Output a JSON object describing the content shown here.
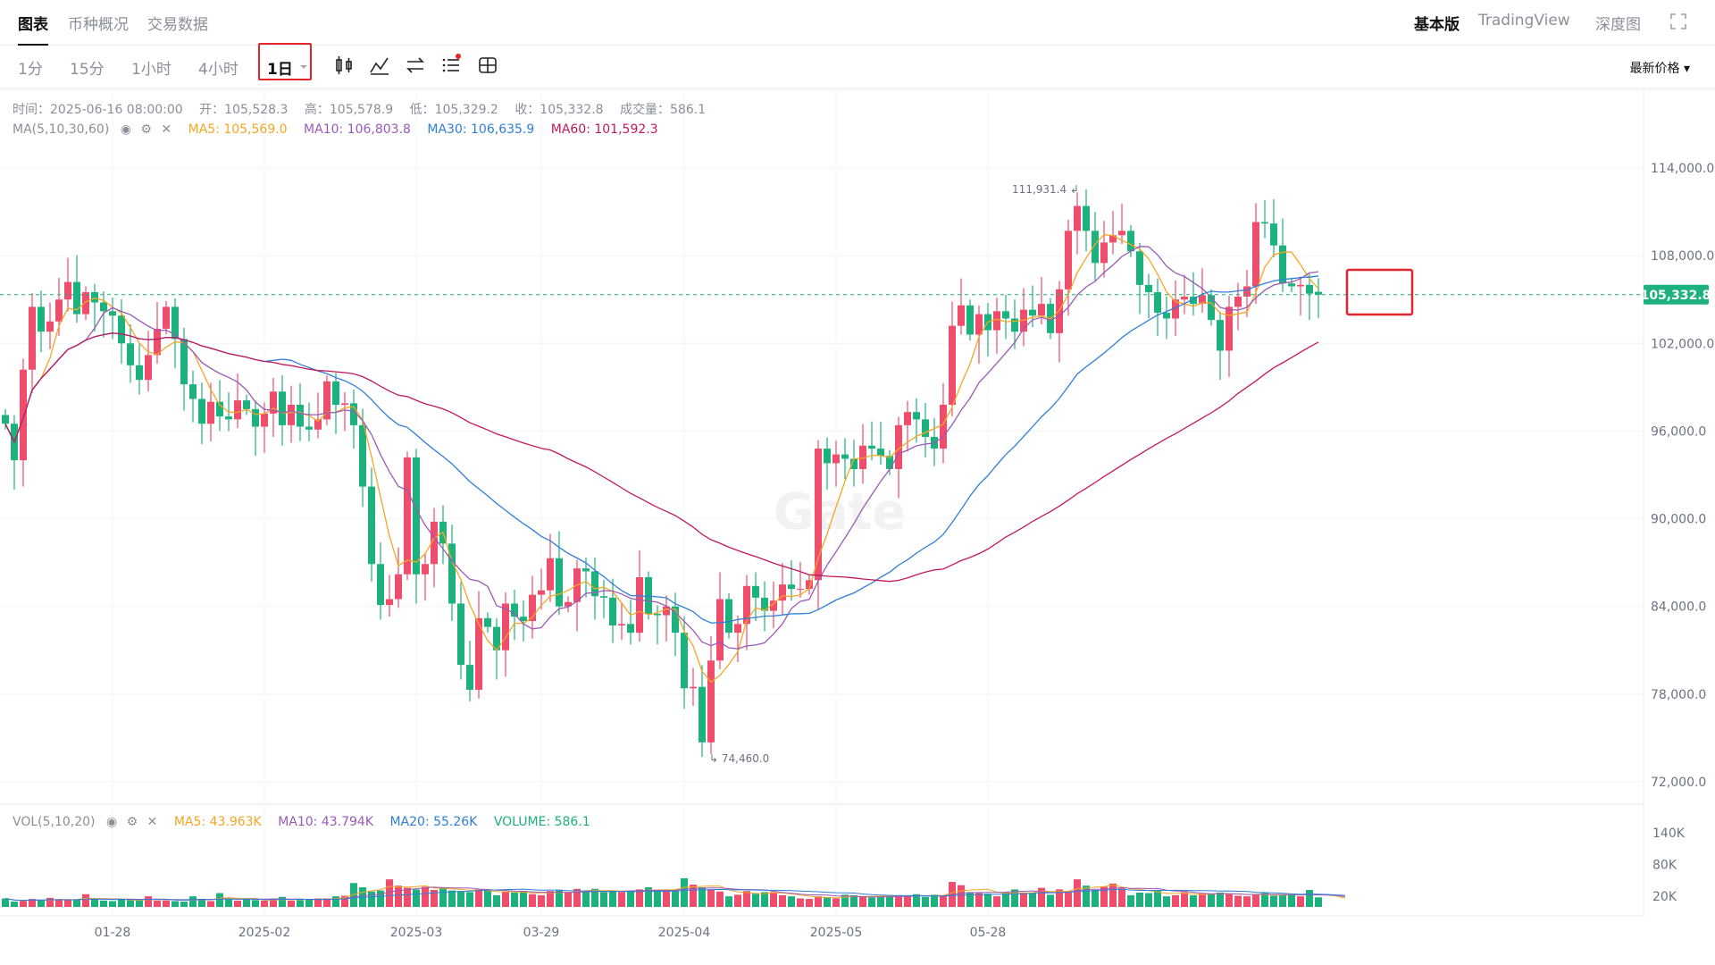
{
  "tabs": [
    "图表",
    "币种概况",
    "交易数据"
  ],
  "right_nav": [
    "基本版",
    "TradingView",
    "深度图"
  ],
  "intervals": [
    "1分",
    "15分",
    "1小时",
    "4小时",
    "1日"
  ],
  "price_type": "最新价格",
  "ohlc": {
    "time": "时间：2025-06-16 08:00:00",
    "open": "开：105,528.3",
    "high": "高：105,578.9",
    "low": "低：105,329.2",
    "close": "收：105,332.8",
    "vol": "成交量：586.1"
  },
  "ma_legend": {
    "title": "MA(5,10,30,60)",
    "ma5": "MA5: 105,569.0",
    "ma10": "MA10: 106,803.8",
    "ma30": "MA30: 106,635.9",
    "ma60": "MA60: 101,592.3"
  },
  "vol_legend": {
    "title": "VOL(5,10,20)",
    "ma5": "MA5: 43.963K",
    "ma10": "MA10: 43.794K",
    "ma20": "MA20: 55.26K",
    "volume": "VOLUME: 586.1"
  },
  "price_axis": [
    "114,000.0",
    "108,000.0",
    "102,000.0",
    "96,000.0",
    "90,000.0",
    "84,000.0",
    "78,000.0",
    "72,000.0"
  ],
  "vol_axis": [
    "140K",
    "80K",
    "20K"
  ],
  "date_axis": [
    "01-28",
    "2025-02",
    "2025-03",
    "03-29",
    "2025-04",
    "2025-05",
    "05-28"
  ],
  "current_price": "105,332.8",
  "high_marker": "111,931.4",
  "low_marker": "74,460.0",
  "colors": {
    "up": "#ef4d6c",
    "down": "#1db17e",
    "ma5": "#f5a623",
    "ma10": "#9b59b6",
    "ma30": "#2f7ed8",
    "ma60": "#c2185b"
  },
  "chart_data": {
    "type": "candlestick",
    "pair_interval": "1日",
    "ylim": [
      72000,
      114000
    ],
    "closes": [
      96500,
      94000,
      100200,
      104500,
      102800,
      103500,
      105000,
      106200,
      104000,
      105500,
      104800,
      104200,
      103900,
      102000,
      100500,
      99500,
      101200,
      103000,
      104500,
      102300,
      99200,
      98200,
      96500,
      98000,
      97000,
      96800,
      98100,
      97500,
      96300,
      97200,
      98700,
      96400,
      97800,
      96300,
      96100,
      96800,
      99400,
      97800,
      97900,
      96400,
      92200,
      86900,
      84100,
      84500,
      86200,
      94200,
      86200,
      86900,
      89800,
      88300,
      84200,
      80000,
      78300,
      83200,
      82600,
      81000,
      84200,
      83300,
      83000,
      84800,
      85100,
      87300,
      84000,
      84300,
      86600,
      86400,
      84700,
      84600,
      82700,
      82800,
      82200,
      86000,
      83500,
      83400,
      84000,
      82200,
      78400,
      78500,
      74700,
      80300,
      84500,
      82200,
      82800,
      85400,
      84600,
      83700,
      84400,
      85500,
      85200,
      85200,
      85800,
      94800,
      93800,
      94400,
      94100,
      93400,
      95000,
      94800,
      94300,
      93400,
      96400,
      97300,
      96800,
      95600,
      94800,
      97800,
      103200,
      104600,
      102600,
      104000,
      102900,
      104200,
      103700,
      102800,
      104300,
      103900,
      104700,
      102700,
      105700,
      109700,
      111400,
      109700,
      107500,
      108900,
      109400,
      109700,
      108300,
      106000,
      105500,
      104100,
      103700,
      105000,
      105200,
      104700,
      105300,
      103600,
      101500,
      104500,
      105200,
      105900,
      110300,
      110200,
      108700,
      106100,
      105900,
      106000,
      105400,
      105333
    ],
    "ma_series_note": "MA5/MA10/MA30/MA60 computed from closes",
    "volumes_k": [
      16,
      10,
      11,
      15,
      12,
      17,
      14,
      13,
      14,
      24,
      15,
      12,
      11,
      14,
      13,
      12,
      20,
      12,
      12,
      11,
      10,
      20,
      15,
      11,
      26,
      16,
      12,
      14,
      13,
      12,
      13,
      19,
      12,
      13,
      14,
      16,
      16,
      20,
      21,
      45,
      37,
      29,
      31,
      52,
      40,
      36,
      33,
      38,
      32,
      36,
      31,
      30,
      28,
      33,
      31,
      22,
      29,
      27,
      30,
      24,
      22,
      30,
      32,
      28,
      34,
      29,
      34,
      28,
      30,
      28,
      30,
      33,
      37,
      32,
      30,
      31,
      54,
      42,
      37,
      33,
      29,
      20,
      23,
      30,
      25,
      28,
      28,
      22,
      20,
      16,
      15,
      20,
      18,
      16,
      23,
      22,
      20,
      18,
      19,
      21,
      22,
      20,
      24,
      19,
      23,
      21,
      47,
      41,
      28,
      26,
      25,
      20,
      28,
      33,
      26,
      27,
      36,
      23,
      33,
      29,
      52,
      40,
      32,
      38,
      44,
      35,
      22,
      27,
      26,
      32,
      20,
      22,
      28,
      22,
      25,
      24,
      27,
      25,
      21,
      20,
      23,
      26,
      21,
      22,
      23,
      20,
      32,
      18,
      20,
      13,
      0.6
    ]
  }
}
